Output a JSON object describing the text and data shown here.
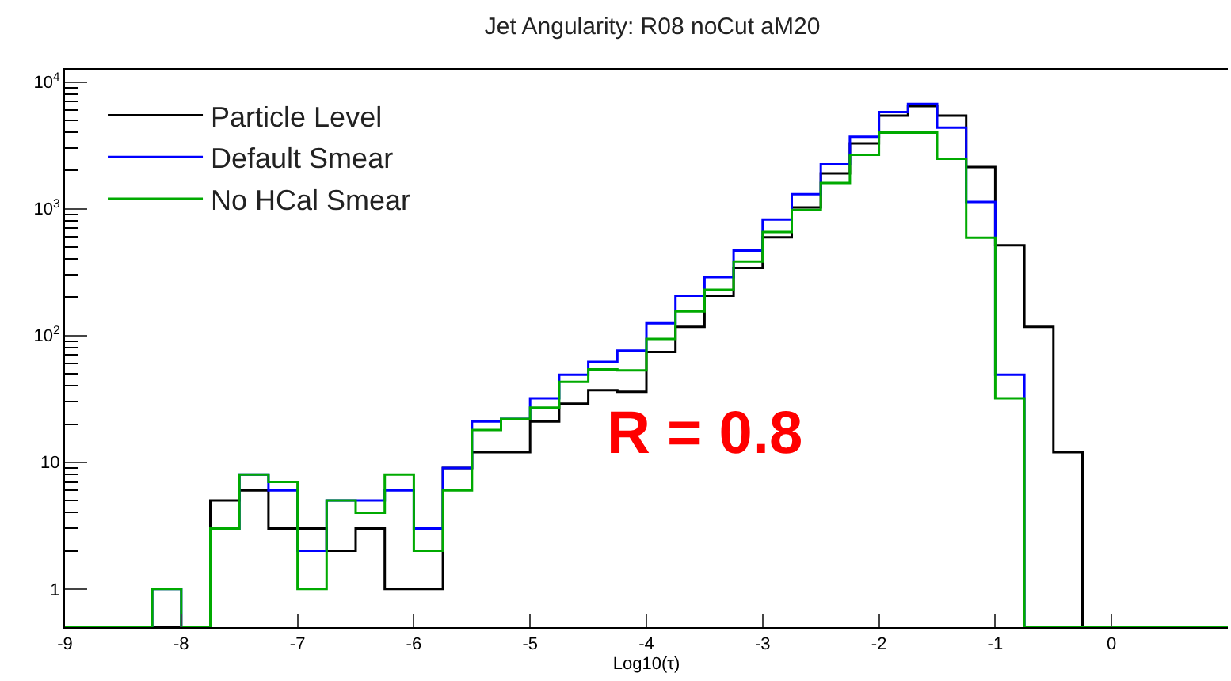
{
  "chart_data": {
    "type": "histogram",
    "title": "Jet Angularity: R08 noCut aM20",
    "xlabel": "Log10(τ)",
    "bins": [
      -9,
      -8.75,
      -8.5,
      -8.25,
      -8,
      -7.75,
      -7.5,
      -7.25,
      -7,
      -6.75,
      -6.5,
      -6.25,
      -6,
      -5.75,
      -5.5,
      -5.25,
      -5,
      -4.75,
      -4.5,
      -4.25,
      -4,
      -3.75,
      -3.5,
      -3.25,
      -3,
      -2.75,
      -2.5,
      -2.25,
      -2,
      -1.75,
      -1.5,
      -1.25,
      -1,
      -0.75,
      -0.5,
      -0.25,
      0,
      0.25,
      0.5,
      0.75,
      1
    ],
    "series": [
      {
        "name": "Particle Level",
        "color": "#000000",
        "values": [
          null,
          null,
          null,
          null,
          null,
          5,
          6,
          3,
          3,
          2,
          3,
          1,
          1,
          9,
          12,
          12,
          21,
          29,
          37,
          36,
          74,
          117,
          206,
          341,
          594,
          1025,
          1900,
          3280,
          5430,
          6450,
          5430,
          2130,
          515,
          117,
          12,
          null,
          null,
          null,
          null,
          null
        ]
      },
      {
        "name": "Default Smear",
        "color": "#0000ff",
        "values": [
          null,
          null,
          null,
          1,
          null,
          3,
          8,
          6,
          2,
          5,
          5,
          6,
          3,
          9,
          21,
          22,
          32,
          49,
          62,
          76,
          125,
          206,
          288,
          468,
          822,
          1300,
          2240,
          3700,
          5800,
          6700,
          4360,
          1130,
          49,
          null,
          null,
          null,
          null,
          null,
          null,
          null
        ]
      },
      {
        "name": "No HCal Smear",
        "color": "#00aa00",
        "values": [
          null,
          null,
          null,
          1,
          null,
          3,
          8,
          7,
          1,
          5,
          4,
          8,
          2,
          6,
          18,
          22,
          27,
          43,
          54,
          53,
          94,
          155,
          229,
          383,
          655,
          977,
          1600,
          2660,
          3990,
          3990,
          2480,
          590,
          32,
          null,
          null,
          null,
          null,
          null,
          null,
          null
        ]
      }
    ],
    "log": "y",
    "xlim": [
      -9,
      1
    ],
    "xticks": [
      -9,
      -8,
      -7,
      -6,
      -5,
      -4,
      -3,
      -2,
      -1,
      0
    ],
    "ylim": [
      0.5,
      12500
    ],
    "yticks": [
      {
        "value": 1,
        "label": "1"
      },
      {
        "value": 10,
        "label": "10"
      },
      {
        "value": 100,
        "label": "10$^{2}$"
      },
      {
        "value": 1000,
        "label": "10$^{3}$"
      },
      {
        "value": 10000,
        "label": "10$^{4}$"
      }
    ],
    "legend": "top left",
    "line_style": "solid",
    "marker": "none",
    "annotations": [
      "R = 0.8"
    ]
  }
}
